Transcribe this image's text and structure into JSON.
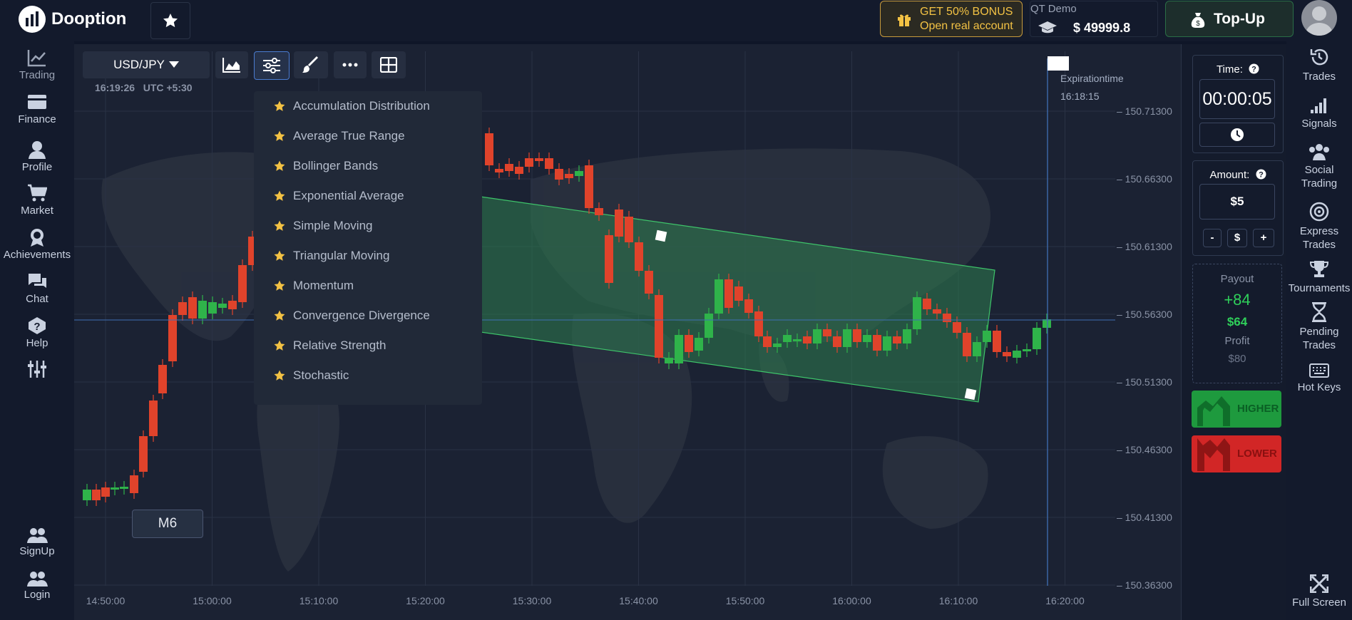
{
  "brand": {
    "name": "Dooption"
  },
  "header": {
    "bonus_line1": "GET 50% BONUS",
    "bonus_line2": "Open real account",
    "account_type": "QT Demo",
    "balance": "$ 49999.8",
    "topup_label": "Top-Up"
  },
  "left_nav": {
    "trading": "Trading",
    "finance": "Finance",
    "profile": "Profile",
    "market": "Market",
    "achievements": "Achievements",
    "chat": "Chat",
    "help": "Help",
    "signup": "SignUp",
    "login": "Login"
  },
  "toolbar": {
    "pair": "USD/JPY",
    "clock": "16:19:26",
    "timezone": "UTC +5:30"
  },
  "indicators": [
    "Accumulation Distribution",
    "Average True Range",
    "Bollinger Bands",
    "Exponential Average",
    "Simple Moving",
    "Triangular Moving",
    "Momentum",
    "Convergence Divergence",
    "Relative Strength",
    "Stochastic"
  ],
  "chart": {
    "timeframe": "M6",
    "expiration_label": "Expirationtime",
    "expiration_time": "16:18:15",
    "price_ticks": [
      "150.71300",
      "150.66300",
      "150.61300",
      "150.56300",
      "150.51300",
      "150.46300",
      "150.41300",
      "150.36300"
    ],
    "time_ticks": [
      "14:50:00",
      "15:00:00",
      "15:10:00",
      "15:20:00",
      "15:30:00",
      "15:40:00",
      "15:50:00",
      "16:00:00",
      "16:10:00",
      "16:20:00"
    ],
    "current_price_ratio": 0.5,
    "colors": {
      "up": "#2fb34a",
      "down": "#e0432b",
      "channel": "#2e7d4f"
    }
  },
  "trade_panel": {
    "time_label": "Time:",
    "time_value": "00:00:05",
    "amount_label": "Amount:",
    "amount_value": "$5",
    "minus": "-",
    "currency": "$",
    "plus": "+",
    "payout_label": "Payout",
    "payout_value": "+84",
    "payout_amount": "$64",
    "profit_label": "Profit",
    "profit_value": "$80",
    "higher_label": "HIGHER",
    "lower_label": "LOWER"
  },
  "right_nav": {
    "trades": "Trades",
    "signals": "Signals",
    "social_line1": "Social",
    "social_line2": "Trading",
    "express_line1": "Express",
    "express_line2": "Trades",
    "tournaments": "Tournaments",
    "pending_line1": "Pending",
    "pending_line2": "Trades",
    "hotkeys": "Hot Keys",
    "fullscreen": "Full Screen"
  }
}
